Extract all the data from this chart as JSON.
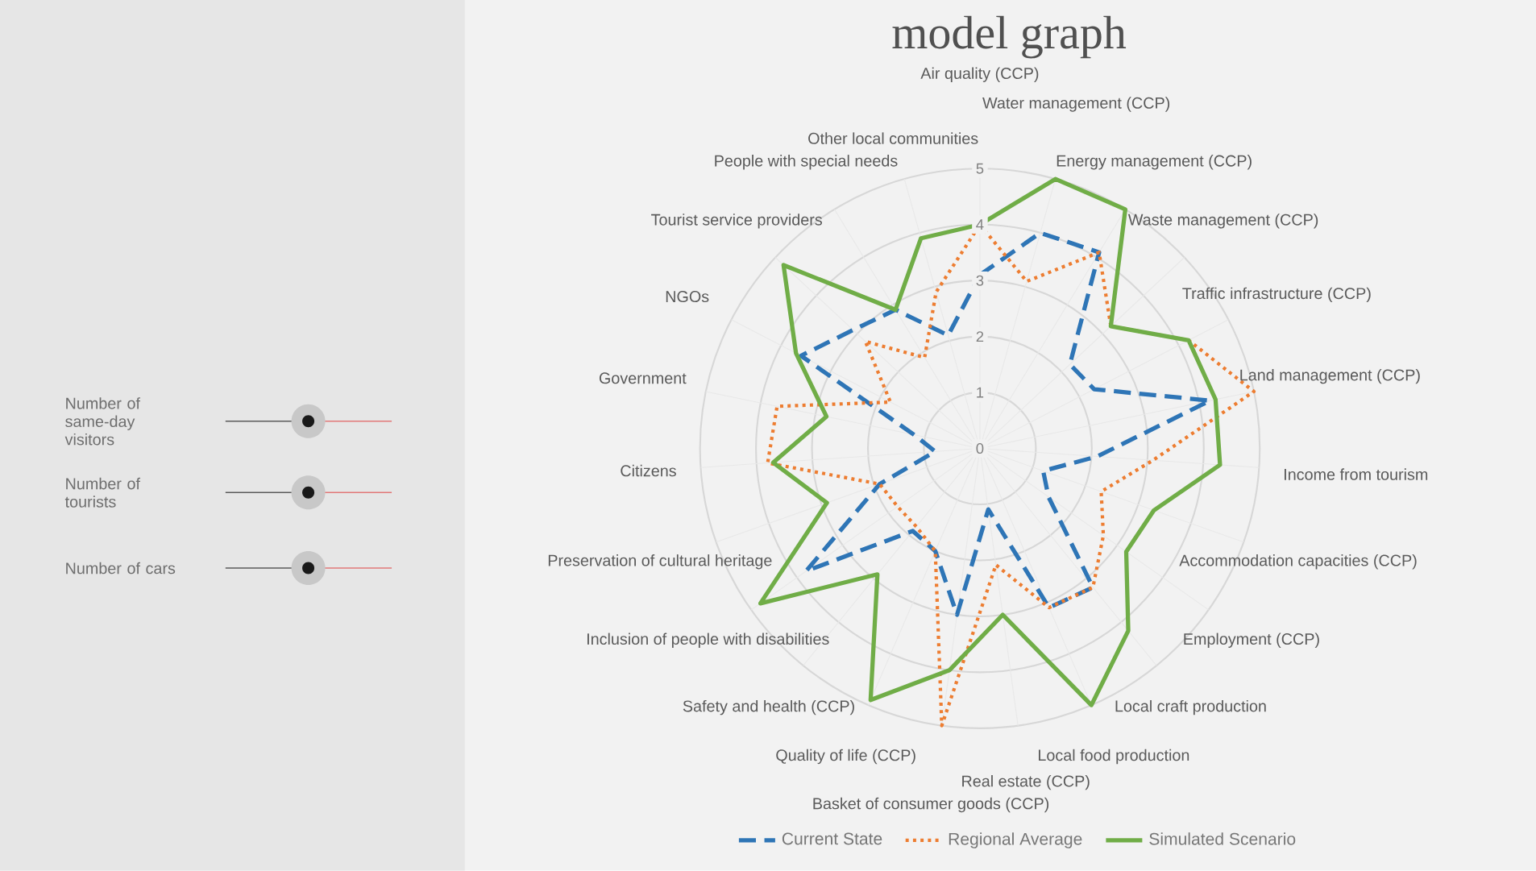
{
  "chart_data": [
    {
      "type": "radar",
      "title": "model graph",
      "categories": [
        "Air quality (CCP)",
        "Water management (CCP)",
        "Energy management (CCP)",
        "Waste management (CCP)",
        "Traffic infrastructure (CCP)",
        "Land management (CCP)",
        "Income from tourism",
        "Accommodation capacities (CCP)",
        "Employment (CCP)",
        "Local craft production",
        "Local food production",
        "Real estate (CCP)",
        "Basket of consumer goods (CCP)",
        "Quality of life (CCP)",
        "Safety and health (CCP)",
        "Inclusion of people with disabilities",
        "Preservation of cultural heritage",
        "Citizens",
        "Government",
        "NGOs",
        "Tourist service providers",
        "People with special needs",
        "Other local communities"
      ],
      "ylim": [
        0,
        5
      ],
      "yticks": [
        0,
        1,
        2,
        3,
        4,
        5
      ],
      "grid": true,
      "legend": "bottom",
      "series": [
        {
          "name": "Current State",
          "color": "#2e75b6",
          "line_style": "dashed",
          "values": [
            3.1,
            4,
            4.1,
            2.2,
            2.3,
            4.2,
            2.1,
            1.2,
            1.5,
            3.2,
            3.1,
            1.1,
            3.0,
            2.0,
            1.9,
            3.8,
            1.9,
            0.8,
            1.2,
            3.6,
            3.1,
            2.9,
            2.1
          ]
        },
        {
          "name": "Regional Average",
          "color": "#ed7d31",
          "line_style": "dotted",
          "values": [
            4,
            3.1,
            4.1,
            3.2,
            4.2,
            5,
            3.1,
            2.3,
            2.7,
            3.2,
            3.1,
            2.1,
            5,
            2.0,
            1.8,
            1.8,
            1.9,
            3.8,
            3.7,
            1.8,
            2.8,
            1.9,
            2.9
          ]
        },
        {
          "name": "Simulated Scenario",
          "color": "#70ad47",
          "line_style": "solid",
          "values": [
            4,
            5,
            5,
            3.2,
            4.2,
            4.3,
            4.3,
            3.3,
            3.2,
            4.2,
            5,
            3,
            4,
            4.9,
            2.9,
            4.8,
            2.9,
            3.7,
            2.8,
            3.7,
            4.8,
            2.9,
            3.9
          ]
        }
      ]
    },
    {
      "type": "other",
      "annotations": [
        "Number of same-day visitors",
        "Number of tourists",
        "Number of cars"
      ]
    }
  ]
}
